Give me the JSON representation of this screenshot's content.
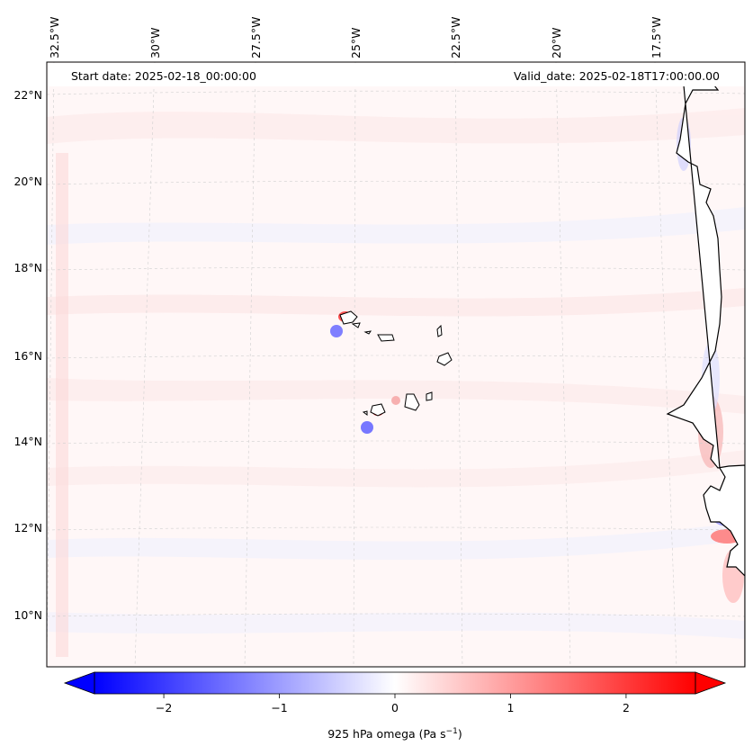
{
  "header": {
    "start_date": "Start date: 2025-02-18_00:00:00",
    "valid_date": "Valid_date: 2025-02-18T17:00:00.00"
  },
  "longitude_labels": [
    "32.5°W",
    "30°W",
    "27.5°W",
    "25°W",
    "22.5°W",
    "20°W",
    "17.5°W"
  ],
  "latitude_labels": [
    "22°N",
    "20°N",
    "18°N",
    "16°N",
    "14°N",
    "12°N",
    "10°N"
  ],
  "colorbar": {
    "label": "925 hPa omega (Pa s",
    "label_sup": "−1",
    "label_end": ")",
    "ticks": [
      "−2",
      "−1",
      "0",
      "1",
      "2"
    ],
    "min": -2.6,
    "max": 2.6,
    "low_color": "#0000ff",
    "mid_color": "#ffffff",
    "high_color": "#ff0000"
  },
  "map": {
    "land_color": "#ffffff",
    "coast_color": "#000000",
    "grid_color": "#cccccc",
    "field_bg": "#fff6f6"
  }
}
